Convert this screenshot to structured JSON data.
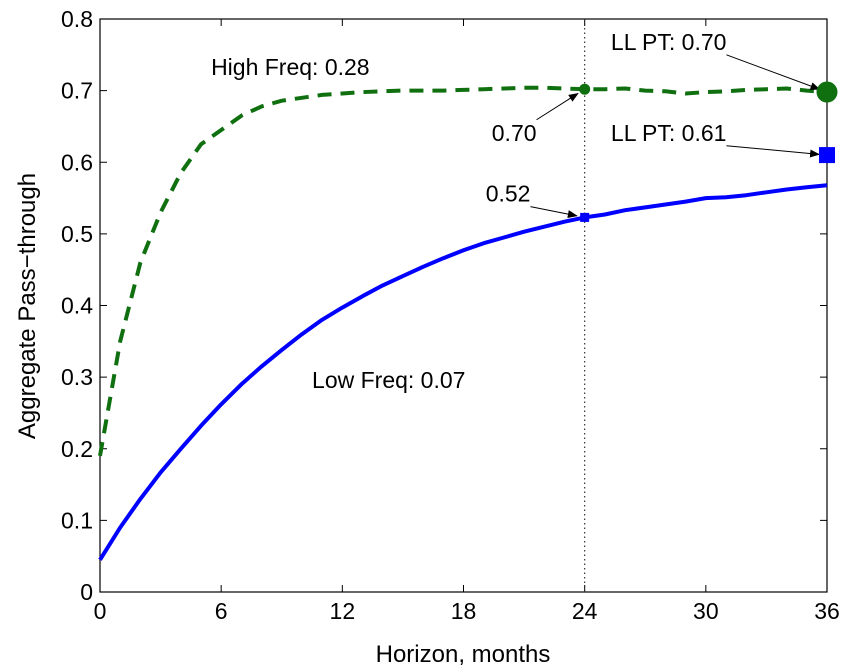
{
  "chart_data": {
    "type": "line",
    "xlabel": "Horizon, months",
    "ylabel": "Aggregate Pass−through",
    "xlim": [
      0,
      36
    ],
    "ylim": [
      0,
      0.8
    ],
    "xticks": [
      0,
      6,
      12,
      18,
      24,
      30,
      36
    ],
    "yticks": [
      0,
      0.1,
      0.2,
      0.3,
      0.4,
      0.5,
      0.6,
      0.7,
      0.8
    ],
    "xtick_labels": [
      "0",
      "6",
      "12",
      "18",
      "24",
      "30",
      "36"
    ],
    "ytick_labels": [
      "0",
      "0.1",
      "0.2",
      "0.3",
      "0.4",
      "0.5",
      "0.6",
      "0.7",
      "0.8"
    ],
    "grid": false,
    "series": [
      {
        "style": "dashed",
        "color": "#107010",
        "x": [
          0,
          1,
          2,
          3,
          4,
          5,
          6,
          7,
          8,
          9,
          10,
          11,
          12,
          13,
          14,
          15,
          16,
          17,
          18,
          19,
          20,
          21,
          22,
          23,
          24,
          25,
          26,
          27,
          28,
          29,
          30,
          31,
          32,
          33,
          34,
          35,
          36
        ],
        "y": [
          0.19,
          0.35,
          0.46,
          0.53,
          0.585,
          0.625,
          0.645,
          0.665,
          0.678,
          0.686,
          0.69,
          0.694,
          0.696,
          0.698,
          0.699,
          0.7,
          0.7,
          0.7,
          0.701,
          0.702,
          0.703,
          0.704,
          0.704,
          0.703,
          0.702,
          0.702,
          0.703,
          0.7,
          0.699,
          0.696,
          0.698,
          0.699,
          0.701,
          0.702,
          0.703,
          0.7,
          0.698
        ]
      },
      {
        "style": "solid",
        "color": "#0000ff",
        "x": [
          0,
          1,
          2,
          3,
          4,
          5,
          6,
          7,
          8,
          9,
          10,
          11,
          12,
          13,
          14,
          15,
          16,
          17,
          18,
          19,
          20,
          21,
          22,
          23,
          24,
          25,
          26,
          27,
          28,
          29,
          30,
          31,
          32,
          33,
          34,
          35,
          36
        ],
        "y": [
          0.045,
          0.09,
          0.13,
          0.167,
          0.2,
          0.232,
          0.262,
          0.29,
          0.315,
          0.338,
          0.36,
          0.38,
          0.397,
          0.413,
          0.428,
          0.441,
          0.454,
          0.466,
          0.477,
          0.487,
          0.495,
          0.503,
          0.51,
          0.517,
          0.523,
          0.527,
          0.533,
          0.537,
          0.541,
          0.545,
          0.55,
          0.551,
          0.554,
          0.558,
          0.562,
          0.565,
          0.568
        ]
      }
    ],
    "markers": [
      {
        "x": 24,
        "y": 0.702,
        "shape": "circle",
        "size": "small",
        "color": "#107010"
      },
      {
        "x": 24,
        "y": 0.523,
        "shape": "square",
        "size": "small",
        "color": "#0000ff"
      },
      {
        "x": 36,
        "y": 0.698,
        "shape": "circle",
        "size": "large",
        "color": "#107010"
      },
      {
        "x": 36,
        "y": 0.61,
        "shape": "square",
        "size": "large",
        "color": "#0000ff"
      }
    ],
    "vline": {
      "x": 24,
      "style": "dotted"
    },
    "annotations": [
      {
        "text": "High Freq: 0.28",
        "x": 5.5,
        "y": 0.722,
        "arrow": false
      },
      {
        "text": "Low Freq: 0.07",
        "x": 10.5,
        "y": 0.285,
        "arrow": false
      },
      {
        "text": "0.70",
        "x": 19.4,
        "y": 0.63,
        "arrow": true,
        "target": {
          "x": 24,
          "y": 0.702
        }
      },
      {
        "text": "0.52",
        "x": 19.1,
        "y": 0.545,
        "arrow": true,
        "target": {
          "x": 24,
          "y": 0.523
        }
      },
      {
        "text": "LL PT: 0.70",
        "x": 25.3,
        "y": 0.757,
        "arrow": true,
        "target": {
          "x": 36,
          "y": 0.698
        }
      },
      {
        "text": "LL PT: 0.61",
        "x": 25.3,
        "y": 0.63,
        "arrow": true,
        "target": {
          "x": 36,
          "y": 0.61
        }
      }
    ]
  }
}
